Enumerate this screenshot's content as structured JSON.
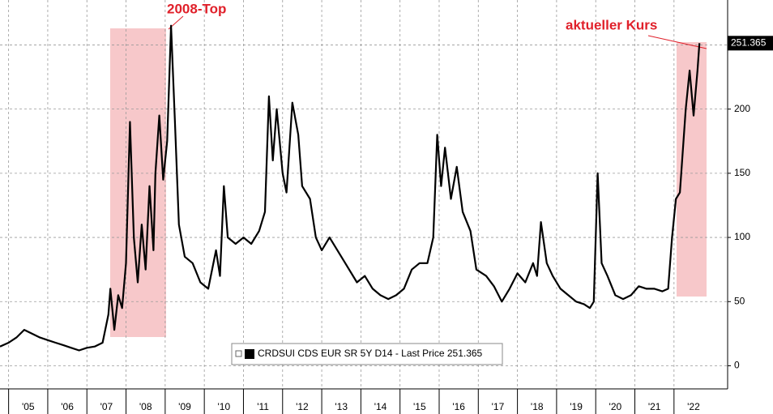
{
  "chart_data": {
    "type": "line",
    "annotations": [
      "2008-Top",
      "aktueller Kurs"
    ],
    "xlim": [
      2004.78,
      2023.37
    ],
    "xticks": [
      {
        "value": 2005,
        "label": "'05"
      },
      {
        "value": 2006,
        "label": "'06"
      },
      {
        "value": 2007,
        "label": "'07"
      },
      {
        "value": 2008,
        "label": "'08"
      },
      {
        "value": 2009,
        "label": "'09"
      },
      {
        "value": 2010,
        "label": "'10"
      },
      {
        "value": 2011,
        "label": "'11"
      },
      {
        "value": 2012,
        "label": "'12"
      },
      {
        "value": 2013,
        "label": "'13"
      },
      {
        "value": 2014,
        "label": "'14"
      },
      {
        "value": 2015,
        "label": "'15"
      },
      {
        "value": 2016,
        "label": "'16"
      },
      {
        "value": 2017,
        "label": "'17"
      },
      {
        "value": 2018,
        "label": "'18"
      },
      {
        "value": 2019,
        "label": "'19"
      },
      {
        "value": 2020,
        "label": "'20"
      },
      {
        "value": 2021,
        "label": "'21"
      },
      {
        "value": 2022,
        "label": "'22"
      }
    ],
    "ylim": [
      -18,
      285
    ],
    "yticks": [
      0,
      50,
      100,
      150,
      200,
      250
    ],
    "grid": true,
    "series": [
      {
        "name": "CRDSUI CDS EUR SR 5Y D14 - Last Price 251.365",
        "color": "#000000",
        "x": [
          2004.78,
          2005.0,
          2005.2,
          2005.4,
          2005.6,
          2005.8,
          2006.0,
          2006.2,
          2006.4,
          2006.6,
          2006.8,
          2007.0,
          2007.2,
          2007.4,
          2007.55,
          2007.6,
          2007.7,
          2007.8,
          2007.9,
          2008.0,
          2008.1,
          2008.2,
          2008.3,
          2008.4,
          2008.5,
          2008.6,
          2008.7,
          2008.75,
          2008.85,
          2008.95,
          2009.05,
          2009.15,
          2009.25,
          2009.35,
          2009.5,
          2009.7,
          2009.9,
          2010.1,
          2010.3,
          2010.4,
          2010.5,
          2010.6,
          2010.8,
          2011.0,
          2011.2,
          2011.4,
          2011.55,
          2011.65,
          2011.75,
          2011.85,
          2012.0,
          2012.1,
          2012.25,
          2012.4,
          2012.5,
          2012.7,
          2012.85,
          2013.0,
          2013.2,
          2013.4,
          2013.6,
          2013.9,
          2014.1,
          2014.3,
          2014.5,
          2014.7,
          2014.9,
          2015.1,
          2015.3,
          2015.5,
          2015.7,
          2015.85,
          2015.95,
          2016.05,
          2016.15,
          2016.3,
          2016.45,
          2016.6,
          2016.8,
          2016.95,
          2017.2,
          2017.4,
          2017.6,
          2017.8,
          2018.0,
          2018.2,
          2018.4,
          2018.5,
          2018.6,
          2018.75,
          2018.9,
          2019.1,
          2019.3,
          2019.5,
          2019.7,
          2019.85,
          2019.95,
          2020.05,
          2020.15,
          2020.3,
          2020.5,
          2020.7,
          2020.9,
          2021.1,
          2021.3,
          2021.5,
          2021.7,
          2021.85,
          2021.95,
          2022.05,
          2022.15,
          2022.3,
          2022.4,
          2022.5,
          2022.6,
          2022.65
        ],
        "values": [
          15,
          18,
          22,
          28,
          25,
          22,
          20,
          18,
          16,
          14,
          12,
          14,
          15,
          18,
          40,
          60,
          28,
          55,
          45,
          80,
          190,
          100,
          65,
          110,
          75,
          140,
          90,
          150,
          195,
          145,
          175,
          265,
          190,
          110,
          85,
          80,
          65,
          60,
          90,
          70,
          140,
          100,
          95,
          100,
          95,
          105,
          120,
          210,
          160,
          200,
          150,
          135,
          205,
          180,
          140,
          130,
          100,
          90,
          100,
          90,
          80,
          65,
          70,
          60,
          55,
          52,
          55,
          60,
          75,
          80,
          80,
          100,
          180,
          140,
          170,
          130,
          155,
          120,
          105,
          75,
          70,
          62,
          50,
          60,
          72,
          65,
          80,
          70,
          112,
          80,
          70,
          60,
          55,
          50,
          48,
          45,
          50,
          150,
          80,
          70,
          55,
          52,
          55,
          62,
          60,
          60,
          58,
          60,
          100,
          130,
          135,
          200,
          230,
          195,
          230,
          251.365
        ]
      }
    ]
  }
}
